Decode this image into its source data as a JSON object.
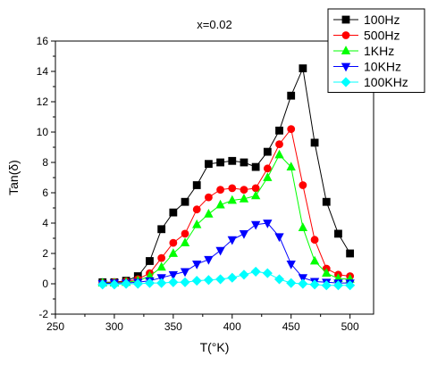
{
  "chart_data": {
    "type": "line",
    "title": "x=0.02",
    "xlabel": "T(°K)",
    "ylabel": "Tan(δ)",
    "xlim": [
      250,
      520
    ],
    "ylim": [
      -2,
      16
    ],
    "xticks": [
      250,
      300,
      350,
      400,
      450,
      500
    ],
    "yticks": [
      -2,
      0,
      2,
      4,
      6,
      8,
      10,
      12,
      14,
      16
    ],
    "grid": false,
    "legend_position": "top-right",
    "x": [
      290,
      300,
      310,
      320,
      330,
      340,
      350,
      360,
      370,
      380,
      390,
      400,
      410,
      420,
      430,
      440,
      450,
      460,
      470,
      480,
      490,
      500
    ],
    "series": [
      {
        "name": "100Hz",
        "color": "#000000",
        "marker": "square",
        "values": [
          0.1,
          0.1,
          0.2,
          0.5,
          1.5,
          3.6,
          4.7,
          5.4,
          6.5,
          7.9,
          8.0,
          8.1,
          8.0,
          7.7,
          8.7,
          10.1,
          12.4,
          14.2,
          9.3,
          5.4,
          3.3,
          2.0
        ]
      },
      {
        "name": "500Hz",
        "color": "#ff0000",
        "marker": "circle",
        "values": [
          0.05,
          0.1,
          0.15,
          0.3,
          0.7,
          1.7,
          2.7,
          3.3,
          4.9,
          5.7,
          6.2,
          6.3,
          6.2,
          6.3,
          7.6,
          9.2,
          10.2,
          6.5,
          2.9,
          1.0,
          0.6,
          0.5
        ]
      },
      {
        "name": "1KHz",
        "color": "#00ff00",
        "marker": "triangle-up",
        "values": [
          0.05,
          0.05,
          0.1,
          0.2,
          0.5,
          1.1,
          2.0,
          2.7,
          3.9,
          4.6,
          5.2,
          5.5,
          5.6,
          5.8,
          7.0,
          8.5,
          7.7,
          3.7,
          1.5,
          0.7,
          0.35,
          0.3
        ]
      },
      {
        "name": "10KHz",
        "color": "#0000ff",
        "marker": "triangle-down",
        "values": [
          0.0,
          0.05,
          0.05,
          0.1,
          0.2,
          0.4,
          0.6,
          0.8,
          1.3,
          1.6,
          2.2,
          2.9,
          3.3,
          3.9,
          4.0,
          3.1,
          1.3,
          0.4,
          0.15,
          0.1,
          0.05,
          0.05
        ]
      },
      {
        "name": "100KHz",
        "color": "#00ffff",
        "marker": "diamond",
        "values": [
          -0.05,
          -0.05,
          0.0,
          0.0,
          0.05,
          0.05,
          0.1,
          0.1,
          0.2,
          0.25,
          0.3,
          0.4,
          0.6,
          0.8,
          0.7,
          0.3,
          0.05,
          0.0,
          -0.05,
          -0.1,
          -0.1,
          -0.1
        ]
      }
    ]
  }
}
